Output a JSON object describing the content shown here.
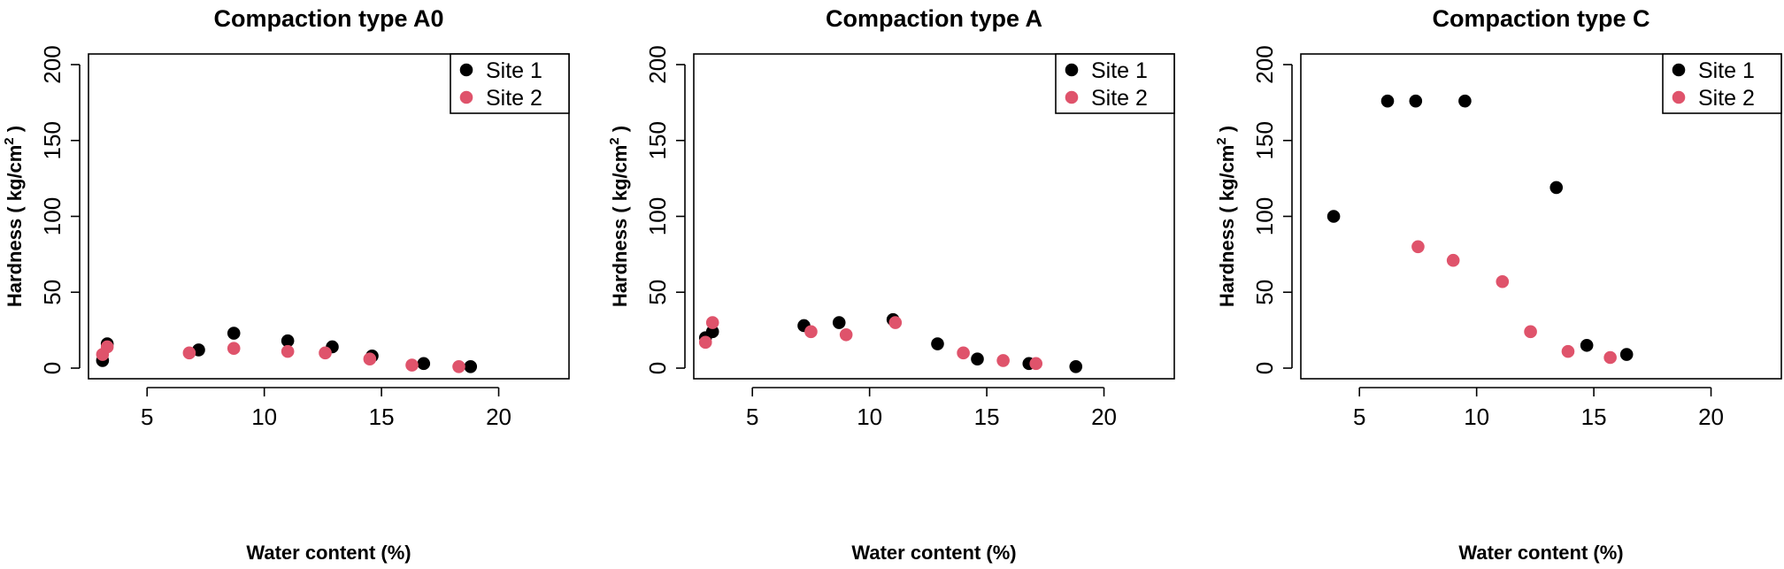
{
  "colors": {
    "site1": "#000000",
    "site2": "#DF536B"
  },
  "chart_data": [
    {
      "type": "scatter",
      "title": "Compaction type A0",
      "xlabel": "Water content (%)",
      "ylabel": "Hardness ( kg/cm",
      "ylabel_sup": "2",
      "ylabel_close": " )",
      "xlim": [
        2.5,
        23
      ],
      "ylim": [
        -7,
        207
      ],
      "xticks": [
        5,
        10,
        15,
        20
      ],
      "yticks": [
        0,
        50,
        100,
        150,
        200
      ],
      "legend_position": "top-right",
      "series": [
        {
          "name": "Site 1",
          "color": "#000000",
          "points": [
            [
              3.1,
              5
            ],
            [
              3.3,
              16
            ],
            [
              7.2,
              12
            ],
            [
              8.7,
              23
            ],
            [
              11.0,
              18
            ],
            [
              12.9,
              14
            ],
            [
              14.6,
              8
            ],
            [
              16.8,
              3
            ],
            [
              18.8,
              1
            ]
          ]
        },
        {
          "name": "Site 2",
          "color": "#DF536B",
          "points": [
            [
              3.1,
              9
            ],
            [
              3.3,
              14
            ],
            [
              6.8,
              10
            ],
            [
              8.7,
              13
            ],
            [
              11.0,
              11
            ],
            [
              12.6,
              10
            ],
            [
              14.5,
              6
            ],
            [
              16.3,
              2
            ],
            [
              18.3,
              1
            ]
          ]
        }
      ]
    },
    {
      "type": "scatter",
      "title": "Compaction type A",
      "xlabel": "Water content (%)",
      "ylabel": "Hardness ( kg/cm",
      "ylabel_sup": "2",
      "ylabel_close": " )",
      "xlim": [
        2.5,
        23
      ],
      "ylim": [
        -7,
        207
      ],
      "xticks": [
        5,
        10,
        15,
        20
      ],
      "yticks": [
        0,
        50,
        100,
        150,
        200
      ],
      "legend_position": "top-right",
      "series": [
        {
          "name": "Site 1",
          "color": "#000000",
          "points": [
            [
              3.0,
              20
            ],
            [
              3.3,
              24
            ],
            [
              7.2,
              28
            ],
            [
              8.7,
              30
            ],
            [
              11.0,
              32
            ],
            [
              12.9,
              16
            ],
            [
              14.6,
              6
            ],
            [
              16.8,
              3
            ],
            [
              18.8,
              1
            ]
          ]
        },
        {
          "name": "Site 2",
          "color": "#DF536B",
          "points": [
            [
              3.0,
              17
            ],
            [
              3.3,
              30
            ],
            [
              7.5,
              24
            ],
            [
              9.0,
              22
            ],
            [
              11.1,
              30
            ],
            [
              14.0,
              10
            ],
            [
              15.7,
              5
            ],
            [
              17.1,
              3
            ]
          ]
        }
      ]
    },
    {
      "type": "scatter",
      "title": "Compaction type C",
      "xlabel": "Water content (%)",
      "ylabel": "Hardness ( kg/cm",
      "ylabel_sup": "2",
      "ylabel_close": " )",
      "xlim": [
        2.5,
        23
      ],
      "ylim": [
        -7,
        207
      ],
      "xticks": [
        5,
        10,
        15,
        20
      ],
      "yticks": [
        0,
        50,
        100,
        150,
        200
      ],
      "legend_position": "top-right",
      "series": [
        {
          "name": "Site 1",
          "color": "#000000",
          "points": [
            [
              3.9,
              100
            ],
            [
              6.2,
              176
            ],
            [
              7.4,
              176
            ],
            [
              9.5,
              176
            ],
            [
              13.4,
              119
            ],
            [
              14.7,
              15
            ],
            [
              16.4,
              9
            ]
          ]
        },
        {
          "name": "Site 2",
          "color": "#DF536B",
          "points": [
            [
              7.5,
              80
            ],
            [
              9.0,
              71
            ],
            [
              11.1,
              57
            ],
            [
              12.3,
              24
            ],
            [
              13.9,
              11
            ],
            [
              15.7,
              7
            ]
          ]
        }
      ]
    }
  ]
}
